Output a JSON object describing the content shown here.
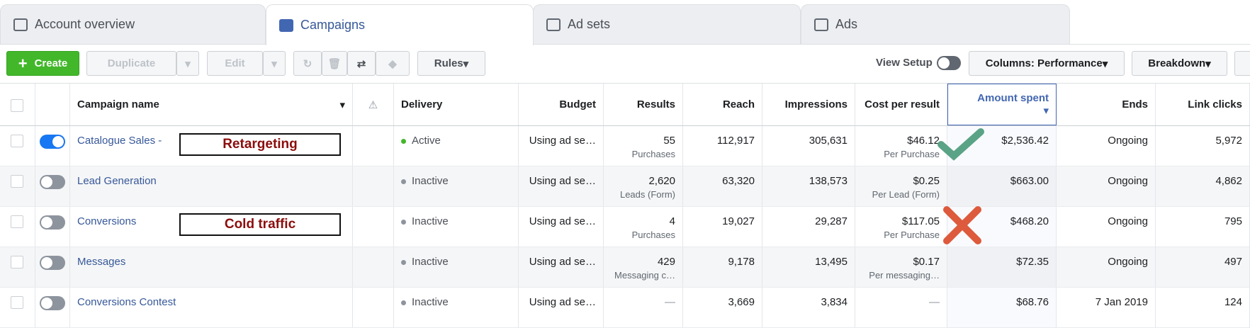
{
  "tabs": [
    "Account overview",
    "Campaigns",
    "Ad sets",
    "Ads"
  ],
  "toolbar": {
    "create": "Create",
    "duplicate": "Duplicate",
    "edit": "Edit",
    "rules": "Rules",
    "view_setup": "View Setup",
    "columns": "Columns: Performance",
    "breakdown": "Breakdown"
  },
  "table": {
    "headers": [
      "Campaign name",
      "Delivery",
      "Budget",
      "Results",
      "Reach",
      "Impressions",
      "Cost per result",
      "Amount spent",
      "Ends",
      "Link clicks"
    ],
    "rows": [
      {
        "name": "Catalogue Sales -",
        "delivery": "Active",
        "budget": "Using ad se…",
        "results": "55",
        "results_sub": "Purchases",
        "reach": "112,917",
        "impressions": "305,631",
        "cost": "$46.12",
        "cost_sub": "Per Purchase",
        "spent": "$2,536.42",
        "ends": "Ongoing",
        "clicks": "5,972",
        "on": true
      },
      {
        "name": "Lead Generation",
        "delivery": "Inactive",
        "budget": "Using ad se…",
        "results": "2,620",
        "results_sub": "Leads (Form)",
        "reach": "63,320",
        "impressions": "138,573",
        "cost": "$0.25",
        "cost_sub": "Per Lead (Form)",
        "spent": "$663.00",
        "ends": "Ongoing",
        "clicks": "4,862",
        "on": false
      },
      {
        "name": "Conversions",
        "delivery": "Inactive",
        "budget": "Using ad se…",
        "results": "4",
        "results_sub": "Purchases",
        "reach": "19,027",
        "impressions": "29,287",
        "cost": "$117.05",
        "cost_sub": "Per Purchase",
        "spent": "$468.20",
        "ends": "Ongoing",
        "clicks": "795",
        "on": false
      },
      {
        "name": "Messages",
        "delivery": "Inactive",
        "budget": "Using ad se…",
        "results": "429",
        "results_sub": "Messaging c…",
        "reach": "9,178",
        "impressions": "13,495",
        "cost": "$0.17",
        "cost_sub": "Per messaging…",
        "spent": "$72.35",
        "ends": "Ongoing",
        "clicks": "497",
        "on": false
      },
      {
        "name": "Conversions Contest",
        "delivery": "Inactive",
        "budget": "Using ad se…",
        "results": "—",
        "results_sub": null,
        "reach": "3,669",
        "impressions": "3,834",
        "cost": "—",
        "cost_sub": null,
        "spent": "$68.76",
        "ends": "7 Jan 2019",
        "clicks": "124",
        "on": false
      }
    ]
  },
  "annotations": [
    "Retargeting",
    "Cold traffic"
  ]
}
